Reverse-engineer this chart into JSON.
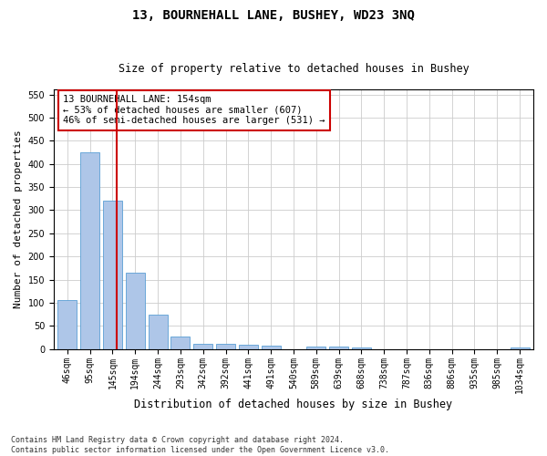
{
  "title": "13, BOURNEHALL LANE, BUSHEY, WD23 3NQ",
  "subtitle": "Size of property relative to detached houses in Bushey",
  "xlabel": "Distribution of detached houses by size in Bushey",
  "ylabel": "Number of detached properties",
  "footnote": "Contains HM Land Registry data © Crown copyright and database right 2024.\nContains public sector information licensed under the Open Government Licence v3.0.",
  "categories": [
    "46sqm",
    "95sqm",
    "145sqm",
    "194sqm",
    "244sqm",
    "293sqm",
    "342sqm",
    "392sqm",
    "441sqm",
    "491sqm",
    "540sqm",
    "589sqm",
    "639sqm",
    "688sqm",
    "738sqm",
    "787sqm",
    "836sqm",
    "886sqm",
    "935sqm",
    "985sqm",
    "1034sqm"
  ],
  "values": [
    105,
    425,
    320,
    165,
    75,
    27,
    12,
    12,
    10,
    7,
    0,
    5,
    5,
    3,
    0,
    0,
    0,
    0,
    0,
    0,
    4
  ],
  "bar_color": "#aec6e8",
  "bar_edgecolor": "#5a9fd4",
  "annotation_text": "13 BOURNEHALL LANE: 154sqm\n← 53% of detached houses are smaller (607)\n46% of semi-detached houses are larger (531) →",
  "vline_x": 2.18,
  "vline_color": "#cc0000",
  "ylim": [
    0,
    560
  ],
  "yticks": [
    0,
    50,
    100,
    150,
    200,
    250,
    300,
    350,
    400,
    450,
    500,
    550
  ],
  "background_color": "#ffffff",
  "grid_color": "#cccccc",
  "box_color": "#cc0000",
  "title_fontsize": 10,
  "subtitle_fontsize": 8.5,
  "ylabel_fontsize": 8,
  "xlabel_fontsize": 8.5,
  "tick_fontsize": 7,
  "annot_fontsize": 7.5,
  "footnote_fontsize": 6
}
